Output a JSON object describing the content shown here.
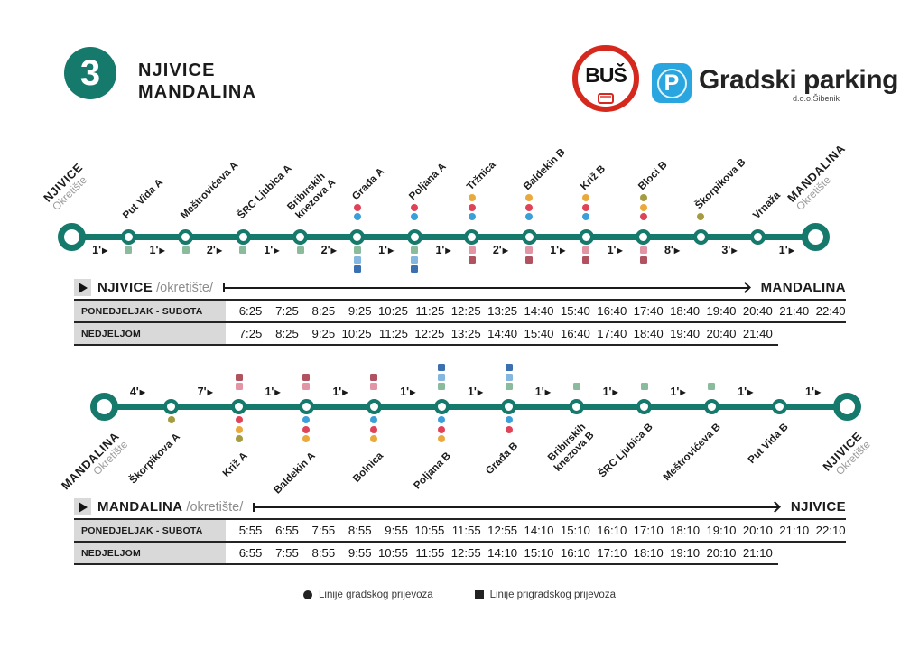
{
  "header": {
    "route_number": "3",
    "title_line1": "NJIVICE",
    "title_line2": "MANDALINA",
    "bus_logo": {
      "text": "BUŠ"
    },
    "parking_logo": {
      "p": "P",
      "name": "Gradski parking",
      "sub": "d.o.o.Šibenik"
    }
  },
  "colors": {
    "teal": "#15796b",
    "red": "#e04358",
    "blue": "#3ba0d9",
    "yellow": "#eaa93c",
    "olive": "#a59b41",
    "green": "#8abb9c",
    "lightblue": "#83b7e0",
    "darkblue": "#3a70b0",
    "pink": "#e295a5",
    "darkred": "#b15261",
    "logo_red": "#d6291e",
    "logo_blue": "#29a5df"
  },
  "markers": {
    "arrow": "▶"
  },
  "routes": [
    {
      "name": "NJIVICE - MANDALINA",
      "stops": [
        {
          "name": "NJIVICE",
          "sub": "Okretište",
          "terminal": true
        },
        {
          "name": "Put Vida",
          "letter": "A",
          "squares": [
            "green"
          ]
        },
        {
          "name": "Meštrovićeva",
          "letter": "A",
          "squares": [
            "green"
          ]
        },
        {
          "name": "ŠRC Ljubica",
          "letter": "A",
          "squares": [
            "green"
          ]
        },
        {
          "name": "Bribirskih|knezova",
          "letter": "A",
          "squares": [
            "green"
          ]
        },
        {
          "name": "Građa",
          "letter": "A",
          "dots": [
            "red",
            "blue"
          ],
          "squares": [
            "green",
            "lightblue",
            "darkblue"
          ]
        },
        {
          "name": "Poljana",
          "letter": "A",
          "dots": [
            "red",
            "blue"
          ],
          "squares": [
            "green",
            "lightblue",
            "darkblue"
          ]
        },
        {
          "name": "Tržnica",
          "dots": [
            "yellow",
            "red",
            "blue"
          ],
          "squares": [
            "pink",
            "darkred"
          ]
        },
        {
          "name": "Baldekin",
          "letter": "B",
          "dots": [
            "yellow",
            "red",
            "blue"
          ],
          "squares": [
            "pink",
            "darkred"
          ]
        },
        {
          "name": "Križ",
          "letter": "B",
          "dots": [
            "yellow",
            "red",
            "blue"
          ],
          "squares": [
            "pink",
            "darkred"
          ]
        },
        {
          "name": "Bloci",
          "letter": "B",
          "dots": [
            "olive",
            "yellow",
            "red"
          ],
          "squares": [
            "pink",
            "darkred"
          ]
        },
        {
          "name": "Škorpikova",
          "letter": "B",
          "dots": [
            "olive"
          ]
        },
        {
          "name": "Vrnaža"
        },
        {
          "name": "MANDALINA",
          "sub": "Okretište",
          "terminal": true
        }
      ],
      "segment_times": [
        "1'",
        "1'",
        "2'",
        "1'",
        "2'",
        "1'",
        "1'",
        "2'",
        "1'",
        "1'",
        "8'",
        "3'",
        "1'"
      ]
    },
    {
      "name": "MANDALINA - NJIVICE",
      "stops": [
        {
          "name": "MANDALINA",
          "sub": "Okretište",
          "terminal": true
        },
        {
          "name": "Škorpikova",
          "letter": "A",
          "dots": [
            "olive"
          ]
        },
        {
          "name": "Križ",
          "letter": "A",
          "squares": [
            "darkred",
            "pink"
          ],
          "dots": [
            "red",
            "yellow",
            "olive"
          ]
        },
        {
          "name": "Baldekin",
          "letter": "A",
          "squares": [
            "darkred",
            "pink"
          ],
          "dots": [
            "blue",
            "red",
            "yellow"
          ]
        },
        {
          "name": "Bolnica",
          "squares": [
            "darkred",
            "pink"
          ],
          "dots": [
            "blue",
            "red",
            "yellow"
          ]
        },
        {
          "name": "Poljana",
          "letter": "B",
          "squares": [
            "darkblue",
            "lightblue",
            "green"
          ],
          "dots": [
            "blue",
            "red",
            "yellow"
          ]
        },
        {
          "name": "Građa",
          "letter": "B",
          "squares": [
            "darkblue",
            "lightblue",
            "green"
          ],
          "dots": [
            "blue",
            "red"
          ]
        },
        {
          "name": "Bribirskih|knezova",
          "letter": "B",
          "squares": [
            "green"
          ]
        },
        {
          "name": "ŠRC Ljubica",
          "letter": "B",
          "squares": [
            "green"
          ]
        },
        {
          "name": "Meštrovićeva",
          "letter": "B",
          "squares": [
            "green"
          ]
        },
        {
          "name": "Put Vida",
          "letter": "B"
        },
        {
          "name": "NJIVICE",
          "sub": "Okretište",
          "terminal": true
        }
      ],
      "segment_times": [
        "4'",
        "7'",
        "1'",
        "1'",
        "1'",
        "1'",
        "1'",
        "1'",
        "1'",
        "1'",
        "1'"
      ]
    }
  ],
  "timetables": [
    {
      "origin": "NJIVICE",
      "origin_sub": "/okretište/",
      "destination": "MANDALINA",
      "rows": [
        {
          "label": "PONEDJELJAK - SUBOTA",
          "times": [
            "6:25",
            "7:25",
            "8:25",
            "9:25",
            "10:25",
            "11:25",
            "12:25",
            "13:25",
            "14:40",
            "15:40",
            "16:40",
            "17:40",
            "18:40",
            "19:40",
            "20:40",
            "21:40",
            "22:40"
          ]
        },
        {
          "label": "NEDJELJOM",
          "times": [
            "7:25",
            "8:25",
            "9:25",
            "10:25",
            "11:25",
            "12:25",
            "13:25",
            "14:40",
            "15:40",
            "16:40",
            "17:40",
            "18:40",
            "19:40",
            "20:40",
            "21:40"
          ]
        }
      ]
    },
    {
      "origin": "MANDALINA",
      "origin_sub": "/okretište/",
      "destination": "NJIVICE",
      "rows": [
        {
          "label": "PONEDJELJAK - SUBOTA",
          "times": [
            "5:55",
            "6:55",
            "7:55",
            "8:55",
            "9:55",
            "10:55",
            "11:55",
            "12:55",
            "14:10",
            "15:10",
            "16:10",
            "17:10",
            "18:10",
            "19:10",
            "20:10",
            "21:10",
            "22:10"
          ]
        },
        {
          "label": "NEDJELJOM",
          "times": [
            "6:55",
            "7:55",
            "8:55",
            "9:55",
            "10:55",
            "11:55",
            "12:55",
            "14:10",
            "15:10",
            "16:10",
            "17:10",
            "18:10",
            "19:10",
            "20:10",
            "21:10"
          ]
        }
      ]
    }
  ],
  "legend": {
    "city": "Linije gradskog prijevoza",
    "suburban": "Linije prigradskog prijevoza"
  }
}
